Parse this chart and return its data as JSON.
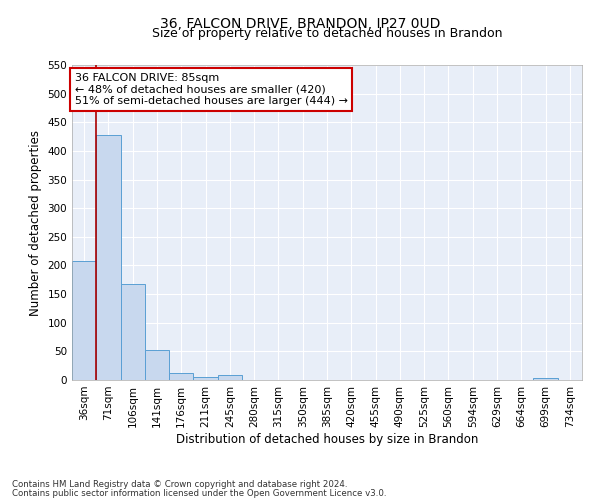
{
  "title": "36, FALCON DRIVE, BRANDON, IP27 0UD",
  "subtitle": "Size of property relative to detached houses in Brandon",
  "xlabel": "Distribution of detached houses by size in Brandon",
  "ylabel": "Number of detached properties",
  "categories": [
    "36sqm",
    "71sqm",
    "106sqm",
    "141sqm",
    "176sqm",
    "211sqm",
    "245sqm",
    "280sqm",
    "315sqm",
    "350sqm",
    "385sqm",
    "420sqm",
    "455sqm",
    "490sqm",
    "525sqm",
    "560sqm",
    "594sqm",
    "629sqm",
    "664sqm",
    "699sqm",
    "734sqm"
  ],
  "values": [
    207,
    428,
    168,
    52,
    13,
    5,
    9,
    0,
    0,
    0,
    0,
    0,
    0,
    0,
    0,
    0,
    0,
    0,
    0,
    4,
    0
  ],
  "bar_color": "#c8d8ee",
  "bar_edge_color": "#5a9fd4",
  "annotation_title": "36 FALCON DRIVE: 85sqm",
  "annotation_line1": "← 48% of detached houses are smaller (420)",
  "annotation_line2": "51% of semi-detached houses are larger (444) →",
  "annotation_box_color": "#ffffff",
  "annotation_box_edge": "#cc0000",
  "vline_color": "#aa0000",
  "vline_x": 0.5,
  "ylim": [
    0,
    550
  ],
  "yticks": [
    0,
    50,
    100,
    150,
    200,
    250,
    300,
    350,
    400,
    450,
    500,
    550
  ],
  "footnote1": "Contains HM Land Registry data © Crown copyright and database right 2024.",
  "footnote2": "Contains public sector information licensed under the Open Government Licence v3.0.",
  "background_color": "#ffffff",
  "plot_bg_color": "#e8eef8",
  "grid_color": "#ffffff",
  "title_fontsize": 10,
  "subtitle_fontsize": 9,
  "axis_label_fontsize": 8.5,
  "tick_fontsize": 7.5,
  "annotation_fontsize": 8
}
